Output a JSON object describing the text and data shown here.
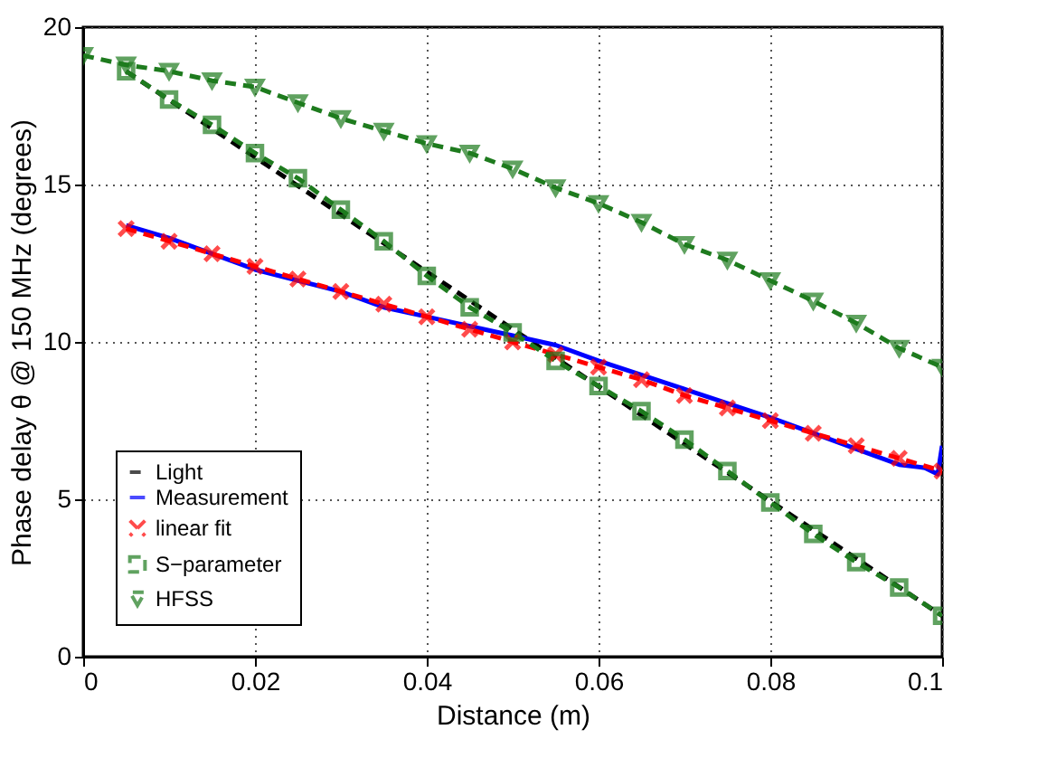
{
  "chart_data": {
    "type": "line",
    "xlabel": "Distance (m)",
    "ylabel": "Phase delay θ @ 150 MHz (degrees)",
    "xlim": [
      0,
      0.1
    ],
    "xticks": [
      0,
      0.02,
      0.04,
      0.06,
      0.08,
      0.1
    ],
    "ylim": [
      0,
      20
    ],
    "yticks": [
      0,
      5,
      10,
      15,
      20
    ],
    "grid": true,
    "legend": "bottom left",
    "series": [
      {
        "name": "Light",
        "color": "#000000",
        "line_style": "dashed",
        "marker": "none",
        "x": [
          0.005,
          0.1
        ],
        "values": [
          18.6,
          1.3
        ]
      },
      {
        "name": "Measurement",
        "color": "#0000ff",
        "line_style": "solid",
        "marker": "none",
        "x": [
          0.005,
          0.01,
          0.02,
          0.03,
          0.035,
          0.04,
          0.05,
          0.055,
          0.06,
          0.07,
          0.08,
          0.085,
          0.09,
          0.095,
          0.098,
          0.0995,
          0.1
        ],
        "values": [
          13.7,
          13.3,
          12.3,
          11.6,
          11.1,
          10.8,
          10.2,
          9.9,
          9.4,
          8.5,
          7.6,
          7.1,
          6.6,
          6.1,
          6.0,
          5.8,
          6.7
        ]
      },
      {
        "name": "linear fit",
        "color": "#ff0000",
        "line_style": "dashed",
        "marker": "cross",
        "x": [
          0.005,
          0.01,
          0.015,
          0.02,
          0.025,
          0.03,
          0.035,
          0.04,
          0.045,
          0.05,
          0.055,
          0.06,
          0.065,
          0.07,
          0.075,
          0.08,
          0.085,
          0.09,
          0.095,
          0.1
        ],
        "values": [
          13.6,
          13.2,
          12.8,
          12.4,
          12.0,
          11.6,
          11.2,
          10.8,
          10.4,
          10.0,
          9.6,
          9.2,
          8.8,
          8.3,
          7.9,
          7.5,
          7.1,
          6.7,
          6.3,
          5.9
        ]
      },
      {
        "name": "S−parameter",
        "color": "#1e7b1e",
        "line_style": "dashed",
        "marker": "square",
        "x": [
          0.005,
          0.01,
          0.015,
          0.02,
          0.025,
          0.03,
          0.035,
          0.04,
          0.045,
          0.05,
          0.055,
          0.06,
          0.065,
          0.07,
          0.075,
          0.08,
          0.085,
          0.09,
          0.095,
          0.1
        ],
        "values": [
          18.6,
          17.7,
          16.9,
          16.0,
          15.2,
          14.2,
          13.2,
          12.1,
          11.1,
          10.3,
          9.4,
          8.6,
          7.8,
          6.9,
          5.9,
          4.9,
          3.9,
          3.0,
          2.2,
          1.3
        ]
      },
      {
        "name": "HFSS",
        "color": "#1e7b1e",
        "line_style": "dashed",
        "marker": "triangle",
        "x": [
          0,
          0.005,
          0.01,
          0.015,
          0.02,
          0.025,
          0.03,
          0.035,
          0.04,
          0.045,
          0.05,
          0.055,
          0.06,
          0.065,
          0.07,
          0.075,
          0.08,
          0.085,
          0.09,
          0.095,
          0.1
        ],
        "values": [
          19.1,
          18.8,
          18.6,
          18.3,
          18.1,
          17.6,
          17.1,
          16.7,
          16.3,
          16.0,
          15.5,
          14.9,
          14.4,
          13.8,
          13.1,
          12.6,
          11.95,
          11.3,
          10.6,
          9.8,
          9.2
        ]
      }
    ]
  }
}
